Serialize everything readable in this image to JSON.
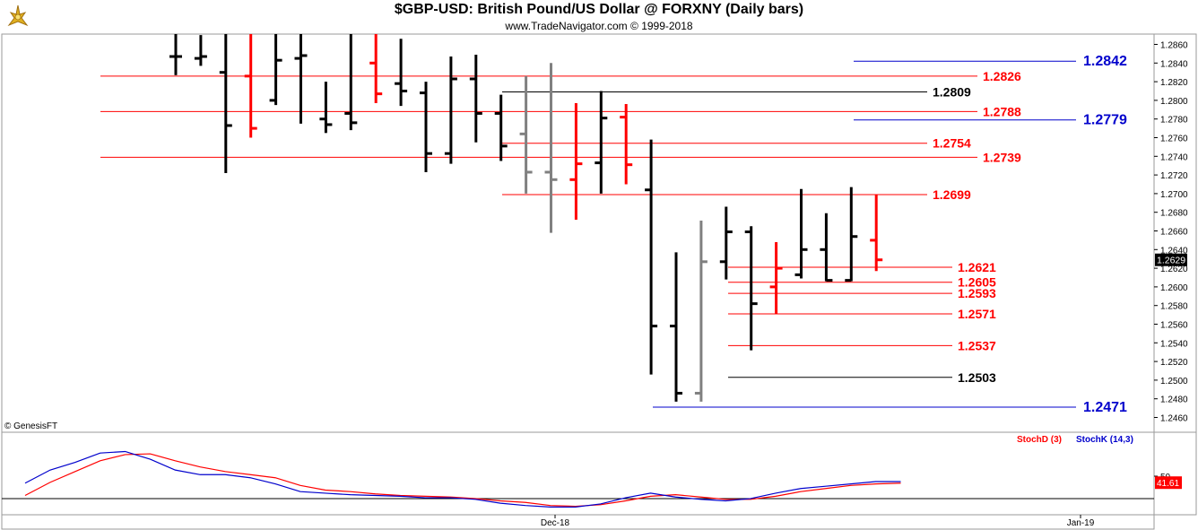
{
  "header": {
    "title": "$GBP-USD:  British Pound/US Dollar @ FORXNY  (Daily bars)",
    "subtitle": "www.TradeNavigator.com © 1999-2018",
    "copyright": "© GenesisFT"
  },
  "colors": {
    "up": "#000000",
    "down": "#ff0000",
    "inside": "#808080",
    "level_red": "#ff0000",
    "level_black": "#000000",
    "level_blue": "#0000cc",
    "stoch_d": "#ff0000",
    "stoch_k": "#0000cc",
    "axis_bg": "#ffffff",
    "price_marker_bg": "#000000"
  },
  "chart_data": {
    "type": "ohlc",
    "symbol": "$GBP-USD",
    "price_axis": {
      "ylim": [
        1.2448,
        1.2872
      ],
      "ticks": [
        "1.2460",
        "1.2480",
        "1.2500",
        "1.2520",
        "1.2540",
        "1.2560",
        "1.2580",
        "1.2600",
        "1.2620",
        "1.2640",
        "1.2660",
        "1.2680",
        "1.2700",
        "1.2720",
        "1.2740",
        "1.2760",
        "1.2780",
        "1.2800",
        "1.2820",
        "1.2840",
        "1.2860"
      ],
      "last_price": "1.2629"
    },
    "x_axis": {
      "labels": [
        "Dec-18",
        "Jan-19"
      ]
    },
    "bars": [
      {
        "o": 1.2847,
        "h": 1.2905,
        "l": 1.2827,
        "c": 1.2847,
        "k": "up"
      },
      {
        "o": 1.2845,
        "h": 1.287,
        "l": 1.2837,
        "c": 1.2847,
        "k": "up"
      },
      {
        "o": 1.283,
        "h": 1.292,
        "l": 1.2722,
        "c": 1.2773,
        "k": "up"
      },
      {
        "o": 1.2826,
        "h": 1.2872,
        "l": 1.276,
        "c": 1.277,
        "k": "down"
      },
      {
        "o": 1.28,
        "h": 1.2905,
        "l": 1.2795,
        "c": 1.2843,
        "k": "up"
      },
      {
        "o": 1.2845,
        "h": 1.29,
        "l": 1.2775,
        "c": 1.2848,
        "k": "up"
      },
      {
        "o": 1.278,
        "h": 1.282,
        "l": 1.2765,
        "c": 1.2774,
        "k": "up"
      },
      {
        "o": 1.2786,
        "h": 1.2885,
        "l": 1.2768,
        "c": 1.2776,
        "k": "up"
      },
      {
        "o": 1.284,
        "h": 1.2872,
        "l": 1.2797,
        "c": 1.2807,
        "k": "down"
      },
      {
        "o": 1.2818,
        "h": 1.2866,
        "l": 1.2794,
        "c": 1.281,
        "k": "up"
      },
      {
        "o": 1.2808,
        "h": 1.282,
        "l": 1.2723,
        "c": 1.2743,
        "k": "up"
      },
      {
        "o": 1.2743,
        "h": 1.2847,
        "l": 1.2732,
        "c": 1.2823,
        "k": "up"
      },
      {
        "o": 1.2823,
        "h": 1.2849,
        "l": 1.2755,
        "c": 1.2786,
        "k": "up"
      },
      {
        "o": 1.2786,
        "h": 1.2806,
        "l": 1.2735,
        "c": 1.2751,
        "k": "up"
      },
      {
        "o": 1.2764,
        "h": 1.2826,
        "l": 1.27,
        "c": 1.2723,
        "k": "inside"
      },
      {
        "o": 1.2723,
        "h": 1.284,
        "l": 1.2658,
        "c": 1.2715,
        "k": "inside"
      },
      {
        "o": 1.2715,
        "h": 1.2797,
        "l": 1.2672,
        "c": 1.2732,
        "k": "down"
      },
      {
        "o": 1.2733,
        "h": 1.281,
        "l": 1.27,
        "c": 1.2781,
        "k": "up"
      },
      {
        "o": 1.2782,
        "h": 1.2796,
        "l": 1.271,
        "c": 1.2731,
        "k": "down"
      },
      {
        "o": 1.2704,
        "h": 1.2758,
        "l": 1.2506,
        "c": 1.2558,
        "k": "up"
      },
      {
        "o": 1.2558,
        "h": 1.2637,
        "l": 1.2477,
        "c": 1.2486,
        "k": "up"
      },
      {
        "o": 1.2486,
        "h": 1.2671,
        "l": 1.2477,
        "c": 1.2627,
        "k": "inside"
      },
      {
        "o": 1.2627,
        "h": 1.2686,
        "l": 1.2608,
        "c": 1.2659,
        "k": "up"
      },
      {
        "o": 1.2659,
        "h": 1.2665,
        "l": 1.2532,
        "c": 1.2582,
        "k": "up"
      },
      {
        "o": 1.26,
        "h": 1.2648,
        "l": 1.2571,
        "c": 1.262,
        "k": "down"
      },
      {
        "o": 1.2613,
        "h": 1.2705,
        "l": 1.2609,
        "c": 1.264,
        "k": "up"
      },
      {
        "o": 1.264,
        "h": 1.2679,
        "l": 1.2606,
        "c": 1.2607,
        "k": "up"
      },
      {
        "o": 1.2607,
        "h": 1.2707,
        "l": 1.2606,
        "c": 1.2654,
        "k": "up"
      },
      {
        "o": 1.265,
        "h": 1.2699,
        "l": 1.2617,
        "c": 1.2629,
        "k": "down"
      }
    ],
    "levels": [
      {
        "value": 1.2842,
        "label": "1.2842",
        "color": "blue"
      },
      {
        "value": 1.2826,
        "label": "1.2826",
        "color": "red"
      },
      {
        "value": 1.2809,
        "label": "1.2809",
        "color": "black"
      },
      {
        "value": 1.2788,
        "label": "1.2788",
        "color": "red"
      },
      {
        "value": 1.2779,
        "label": "1.2779",
        "color": "blue"
      },
      {
        "value": 1.2754,
        "label": "1.2754",
        "color": "red"
      },
      {
        "value": 1.2739,
        "label": "1.2739",
        "color": "red"
      },
      {
        "value": 1.2699,
        "label": "1.2699",
        "color": "red"
      },
      {
        "value": 1.2621,
        "label": "1.2621",
        "color": "red"
      },
      {
        "value": 1.2605,
        "label": "1.2605",
        "color": "red"
      },
      {
        "value": 1.2593,
        "label": "1.2593",
        "color": "red"
      },
      {
        "value": 1.2571,
        "label": "1.2571",
        "color": "red"
      },
      {
        "value": 1.2537,
        "label": "1.2537",
        "color": "red"
      },
      {
        "value": 1.2503,
        "label": "1.2503",
        "color": "black"
      },
      {
        "value": 1.2471,
        "label": "1.2471",
        "color": "blue"
      }
    ],
    "stochastic": {
      "legend": [
        "StochD (3)",
        "StochK (14,3)"
      ],
      "axis_label": "50",
      "last_value": "41.61",
      "ylim": [
        0,
        100
      ],
      "k": [
        41,
        58,
        68,
        80,
        82,
        72,
        58,
        52,
        52,
        48,
        40,
        30,
        28,
        26,
        25,
        24,
        22,
        22,
        20,
        15,
        12,
        10,
        10,
        14,
        22,
        28,
        23,
        20,
        18,
        21,
        28,
        34,
        37,
        40,
        43,
        43
      ],
      "d": [
        25,
        42,
        56,
        70,
        78,
        79,
        70,
        62,
        56,
        52,
        48,
        38,
        32,
        30,
        27,
        25,
        24,
        23,
        21,
        18,
        16,
        12,
        11,
        13,
        18,
        24,
        26,
        23,
        20,
        20,
        24,
        30,
        34,
        38,
        40,
        41
      ]
    }
  }
}
